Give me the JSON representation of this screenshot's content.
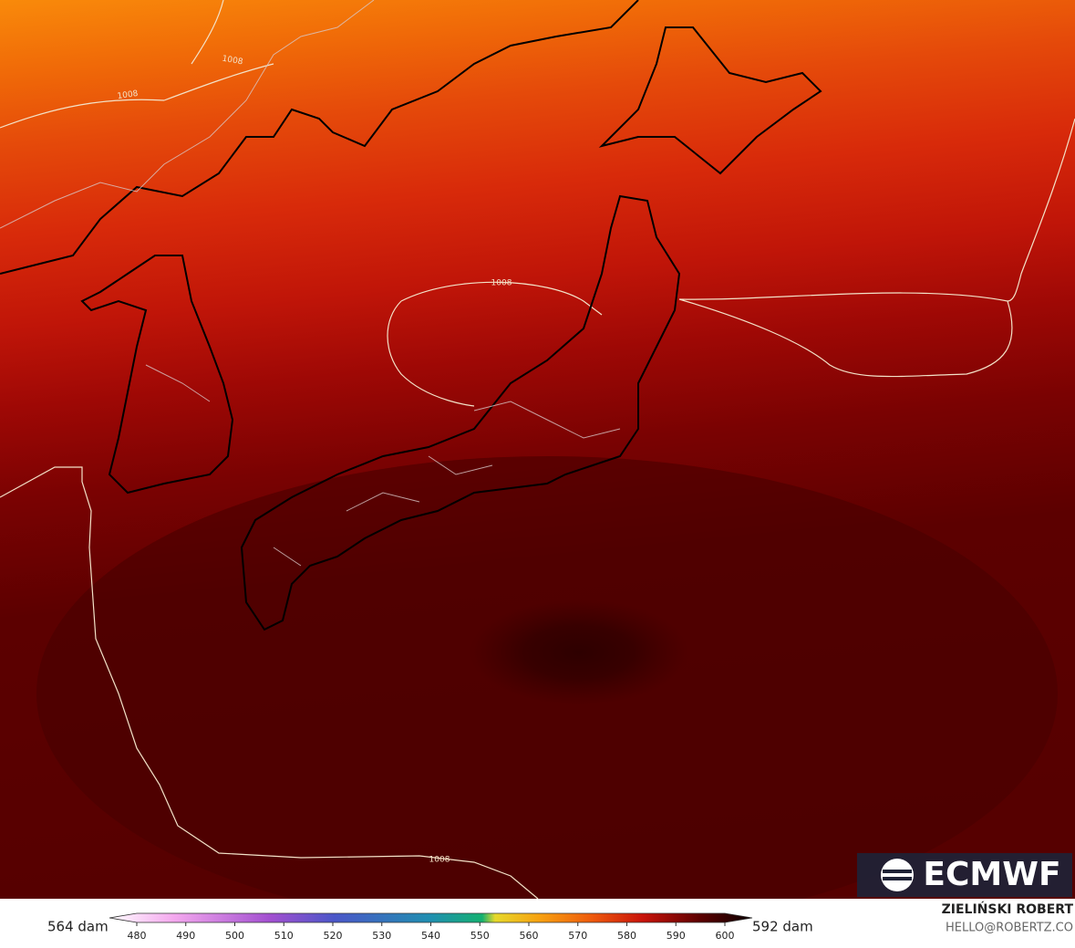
{
  "map": {
    "isobar_labels": [
      "1008",
      "1008",
      "1008",
      "1008"
    ],
    "logo": "ECMWF"
  },
  "colorbar": {
    "min_label": "564 dam",
    "max_label": "592 dam",
    "ticks": [
      480,
      490,
      500,
      510,
      520,
      530,
      540,
      550,
      560,
      570,
      580,
      590,
      600
    ]
  },
  "credits": {
    "author": "ZIELIŃSKI ROBERT",
    "contact": "HELLO@ROBERTZ.CO"
  }
}
